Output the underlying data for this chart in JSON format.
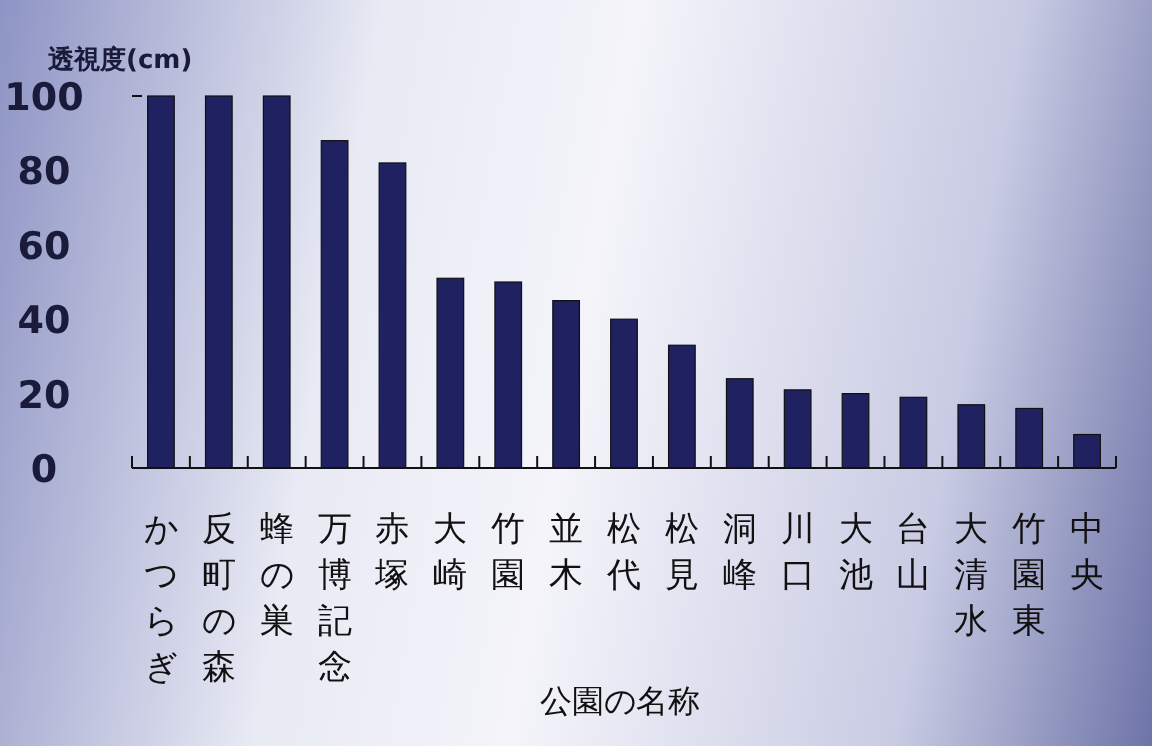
{
  "chart_data": {
    "type": "bar",
    "xlabel": "公園の名称",
    "ylabel": "透視度(cm)",
    "categories": [
      "かつらぎ",
      "反町の森",
      "蜂の巣",
      "万博記念",
      "赤塚",
      "大崎",
      "竹園",
      "並木",
      "松代",
      "松見",
      "洞峰",
      "川口",
      "大池",
      "台山",
      "大清水",
      "竹園東",
      "中央"
    ],
    "values": [
      100,
      100,
      100,
      88,
      82,
      51,
      50,
      45,
      40,
      33,
      24,
      21,
      20,
      19,
      17,
      16,
      9
    ],
    "color": "#1f2160",
    "ylim": [
      0,
      100
    ],
    "yticks": [
      0,
      20,
      40,
      60,
      80,
      100
    ],
    "grid": false
  }
}
